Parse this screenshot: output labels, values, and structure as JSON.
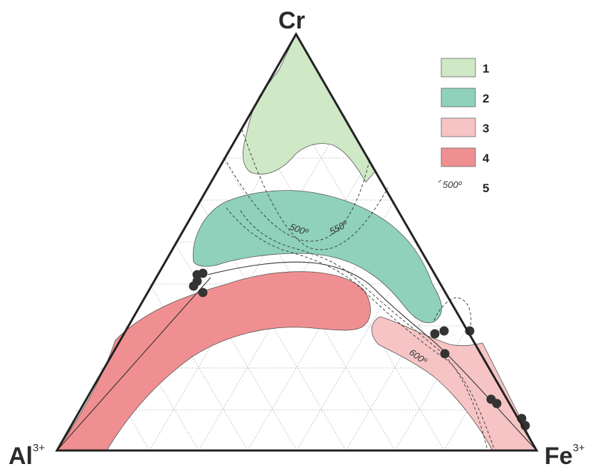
{
  "apices": {
    "top": "Cr",
    "left": "Al",
    "left_sup": "3+",
    "right": "Fe",
    "right_sup": "3+"
  },
  "legend": [
    {
      "number": "1",
      "color": "#cfe8c6"
    },
    {
      "number": "2",
      "color": "#8fd1ba"
    },
    {
      "number": "3",
      "color": "#f6c4c4"
    },
    {
      "number": "4",
      "color": "#f08f91"
    },
    {
      "number": "5",
      "sample": "500º",
      "style": "dashed-isotherm"
    }
  ],
  "isotherms": [
    "500º",
    "550º",
    "600º"
  ],
  "colors": {
    "field_1": "#cfe8c6",
    "field_2": "#8fd1ba",
    "field_3": "#f6c4c4",
    "field_4": "#f08f91",
    "points": "#333333",
    "frame": "#222222"
  }
}
